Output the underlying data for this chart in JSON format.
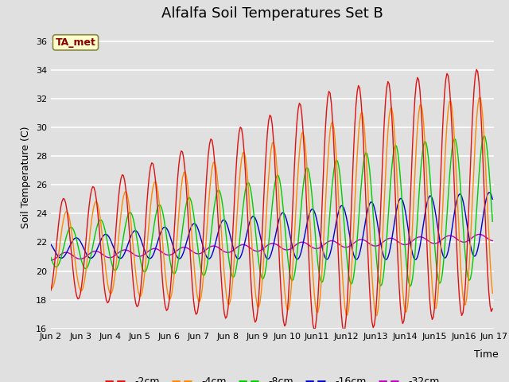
{
  "title": "Alfalfa Soil Temperatures Set B",
  "xlabel": "Time",
  "ylabel": "Soil Temperature (C)",
  "ylim": [
    16,
    37
  ],
  "yticks": [
    16,
    18,
    20,
    22,
    24,
    26,
    28,
    30,
    32,
    34,
    36
  ],
  "x_labels": [
    "Jun 2",
    "Jun 3",
    "Jun 4",
    "Jun 5",
    "Jun 6",
    "Jun 7",
    "Jun 8",
    "Jun 9",
    "Jun 10",
    "Jun11",
    "Jun12",
    "Jun13",
    "Jun14",
    "Jun15",
    "Jun16",
    "Jun 17"
  ],
  "annotation_text": "TA_met",
  "annotation_bg": "#ffffcc",
  "annotation_border": "#888844",
  "annotation_fg": "#880000",
  "colors": {
    "-2cm": "#dd1111",
    "-4cm": "#ff8800",
    "-8cm": "#00cc00",
    "-16cm": "#0000cc",
    "-32cm": "#bb00bb"
  },
  "bg_color": "#e0e0e0",
  "grid_color": "#ffffff",
  "title_fontsize": 13,
  "label_fontsize": 9,
  "tick_fontsize": 8
}
